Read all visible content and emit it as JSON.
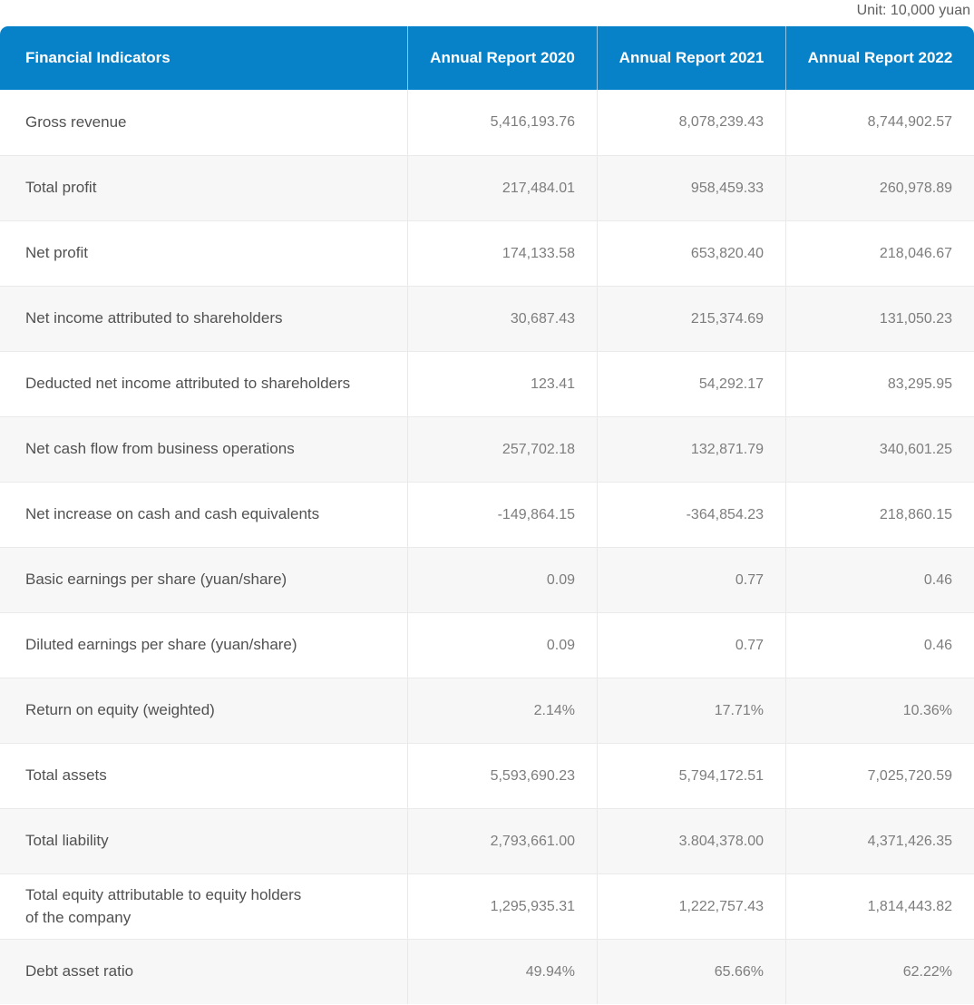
{
  "unit_note": "Unit: 10,000 yuan",
  "colors": {
    "header_bg": "#0782c9",
    "header_text": "#ffffff",
    "alt_row_bg": "#f7f7f7",
    "label_text": "#515151",
    "value_text": "#7d7d7d",
    "divider": "#eaeaea"
  },
  "chart_data": {
    "type": "table",
    "title": "Financial Indicators",
    "unit": "10,000 yuan",
    "columns": [
      "Financial Indicators",
      "Annual Report 2020",
      "Annual Report 2021",
      "Annual Report 2022"
    ],
    "rows": [
      {
        "label": "Gross revenue",
        "y2020": "5,416,193.76",
        "y2021": "8,078,239.43",
        "y2022": "8,744,902.57"
      },
      {
        "label": "Total profit",
        "y2020": "217,484.01",
        "y2021": "958,459.33",
        "y2022": "260,978.89"
      },
      {
        "label": "Net profit",
        "y2020": "174,133.58",
        "y2021": "653,820.40",
        "y2022": "218,046.67"
      },
      {
        "label": "Net income attributed to shareholders",
        "y2020": "30,687.43",
        "y2021": "215,374.69",
        "y2022": "131,050.23"
      },
      {
        "label": "Deducted net income attributed to shareholders",
        "y2020": "123.41",
        "y2021": "54,292.17",
        "y2022": "83,295.95"
      },
      {
        "label": "Net cash flow from business operations",
        "y2020": "257,702.18",
        "y2021": "132,871.79",
        "y2022": "340,601.25"
      },
      {
        "label": "Net increase on cash and cash equivalents",
        "y2020": "-149,864.15",
        "y2021": "-364,854.23",
        "y2022": "218,860.15"
      },
      {
        "label": "Basic earnings per share (yuan/share)",
        "y2020": "0.09",
        "y2021": "0.77",
        "y2022": "0.46"
      },
      {
        "label": "Diluted earnings per share (yuan/share)",
        "y2020": "0.09",
        "y2021": "0.77",
        "y2022": "0.46"
      },
      {
        "label": "Return on equity (weighted)",
        "y2020": "2.14%",
        "y2021": "17.71%",
        "y2022": "10.36%"
      },
      {
        "label": "Total assets",
        "y2020": "5,593,690.23",
        "y2021": "5,794,172.51",
        "y2022": "7,025,720.59"
      },
      {
        "label": "Total liability",
        "y2020": "2,793,661.00",
        "y2021": "3.804,378.00",
        "y2022": "4,371,426.35"
      },
      {
        "label": "Total equity attributable to equity holders\nof the company",
        "y2020": "1,295,935.31",
        "y2021": "1,222,757.43",
        "y2022": "1,814,443.82"
      },
      {
        "label": "Debt asset ratio",
        "y2020": "49.94%",
        "y2021": "65.66%",
        "y2022": "62.22%"
      }
    ]
  }
}
